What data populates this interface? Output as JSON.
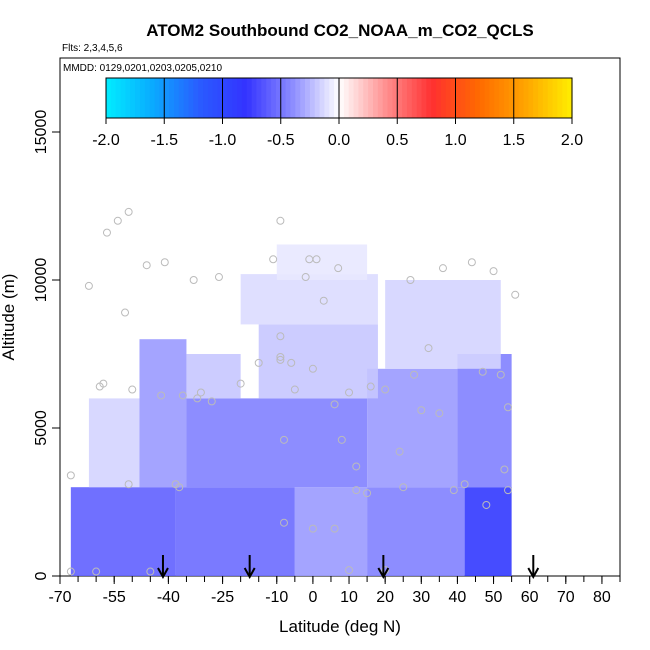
{
  "chart_data": {
    "type": "heatmap",
    "title": "ATOM2 Southbound CO2_NOAA_m_CO2_QCLS",
    "flights_note": "Flts: 2,3,4,5,6",
    "dates_note": "MMDD: 0129,0201,0203,0205,0210",
    "xlabel": "Latitude (deg N)",
    "ylabel": "Altitude (m)",
    "xlim": [
      -70,
      85
    ],
    "ylim": [
      0,
      17500
    ],
    "x_ticks": [
      -70,
      -55,
      -40,
      -25,
      -10,
      0,
      10,
      20,
      30,
      40,
      50,
      60,
      70,
      80
    ],
    "x_tick_labels": [
      "-70",
      "-55",
      "-40",
      "-25",
      "-10",
      "0",
      "10",
      "20",
      "30",
      "40",
      "50",
      "60",
      "70",
      "80"
    ],
    "x_minor_ticks": [
      -70,
      -65,
      -60,
      -55,
      -50,
      -45,
      -40,
      -35,
      -30,
      -25,
      -20,
      -15,
      -10,
      -5,
      0,
      5,
      10,
      15,
      20,
      25,
      30,
      35,
      40,
      45,
      50,
      55,
      60,
      65,
      70,
      75,
      80,
      85
    ],
    "y_ticks": [
      0,
      5000,
      10000,
      15000
    ],
    "y_tick_labels": [
      "0",
      "5000",
      "10000",
      "15000"
    ],
    "colorbar": {
      "min": -2.0,
      "max": 2.0,
      "tick_values": [
        -2.0,
        -1.5,
        -1.0,
        -0.5,
        0.0,
        0.5,
        1.0,
        1.5,
        2.0
      ],
      "tick_labels": [
        "-2.0",
        "-1.5",
        "-1.0",
        "-0.5",
        "0.0",
        "0.5",
        "1.0",
        "1.5",
        "2.0"
      ],
      "colors": [
        "#00eeff",
        "#0aaaff",
        "#2a5cff",
        "#3333ff",
        "#8c8cff",
        "#ffffff",
        "#ff9090",
        "#ff3030",
        "#ff6a00",
        "#ffa500",
        "#ffee00"
      ]
    },
    "arrow_latitudes": [
      -41.5,
      -17.5,
      19.5,
      61
    ],
    "field_regions": [
      {
        "x0": -67,
        "x1": -38,
        "y0": 0,
        "y1": 3000,
        "value": -0.6
      },
      {
        "x0": -38,
        "x1": -5,
        "y0": 0,
        "y1": 3000,
        "value": -0.55
      },
      {
        "x0": -5,
        "x1": 15,
        "y0": 0,
        "y1": 3000,
        "value": -0.35
      },
      {
        "x0": 15,
        "x1": 42,
        "y0": 0,
        "y1": 3000,
        "value": -0.45
      },
      {
        "x0": 42,
        "x1": 55,
        "y0": 0,
        "y1": 3000,
        "value": -0.85
      },
      {
        "x0": -62,
        "x1": -48,
        "y0": 3000,
        "y1": 6000,
        "value": -0.15
      },
      {
        "x0": -48,
        "x1": -35,
        "y0": 3000,
        "y1": 8000,
        "value": -0.35
      },
      {
        "x0": -35,
        "x1": 15,
        "y0": 3000,
        "y1": 6000,
        "value": -0.45
      },
      {
        "x0": 15,
        "x1": 40,
        "y0": 3000,
        "y1": 7000,
        "value": -0.35
      },
      {
        "x0": 40,
        "x1": 55,
        "y0": 3000,
        "y1": 7500,
        "value": -0.45
      },
      {
        "x0": -35,
        "x1": -20,
        "y0": 6000,
        "y1": 7500,
        "value": -0.2
      },
      {
        "x0": -15,
        "x1": 18,
        "y0": 6000,
        "y1": 8500,
        "value": -0.2
      },
      {
        "x0": 20,
        "x1": 52,
        "y0": 7000,
        "y1": 10000,
        "value": -0.15
      },
      {
        "x0": -20,
        "x1": 18,
        "y0": 8500,
        "y1": 10200,
        "value": -0.12
      },
      {
        "x0": -10,
        "x1": 15,
        "y0": 10000,
        "y1": 11200,
        "value": -0.08
      }
    ],
    "observations": [
      [
        -67,
        3400
      ],
      [
        -67,
        150
      ],
      [
        -62,
        9800
      ],
      [
        -59,
        6400
      ],
      [
        -58,
        6500
      ],
      [
        -57,
        11600
      ],
      [
        -54,
        12000
      ],
      [
        -52,
        8900
      ],
      [
        -51,
        12300
      ],
      [
        -51,
        3100
      ],
      [
        -50,
        6300
      ],
      [
        -46,
        10500
      ],
      [
        -42,
        6100
      ],
      [
        -41,
        10600
      ],
      [
        -38,
        3100
      ],
      [
        -37,
        3000
      ],
      [
        -36,
        6100
      ],
      [
        -33,
        10000
      ],
      [
        -32,
        6000
      ],
      [
        -31,
        6200
      ],
      [
        -28,
        5900
      ],
      [
        -26,
        10100
      ],
      [
        -20,
        6500
      ],
      [
        -15,
        7200
      ],
      [
        -11,
        10700
      ],
      [
        -9,
        12000
      ],
      [
        -9,
        8100
      ],
      [
        -9,
        7400
      ],
      [
        -9,
        7300
      ],
      [
        -8,
        4600
      ],
      [
        -8,
        1800
      ],
      [
        -6,
        7200
      ],
      [
        -5,
        6300
      ],
      [
        -2,
        10100
      ],
      [
        -1,
        10700
      ],
      [
        0,
        7000
      ],
      [
        1,
        10700
      ],
      [
        3,
        9300
      ],
      [
        6,
        5800
      ],
      [
        7,
        10400
      ],
      [
        8,
        4600
      ],
      [
        10,
        6200
      ],
      [
        12,
        3700
      ],
      [
        12,
        2900
      ],
      [
        15,
        2800
      ],
      [
        16,
        6400
      ],
      [
        20,
        6300
      ],
      [
        24,
        4200
      ],
      [
        25,
        3000
      ],
      [
        27,
        10000
      ],
      [
        28,
        6800
      ],
      [
        30,
        5600
      ],
      [
        32,
        7700
      ],
      [
        35,
        5500
      ],
      [
        36,
        10400
      ],
      [
        39,
        2900
      ],
      [
        42,
        3100
      ],
      [
        44,
        10600
      ],
      [
        47,
        6900
      ],
      [
        48,
        2400
      ],
      [
        50,
        10300
      ],
      [
        52,
        6800
      ],
      [
        53,
        3600
      ],
      [
        54,
        2900
      ],
      [
        54,
        5700
      ],
      [
        56,
        9500
      ],
      [
        10,
        200
      ],
      [
        20,
        200
      ],
      [
        -60,
        150
      ],
      [
        -45,
        150
      ],
      [
        0,
        1600
      ],
      [
        6,
        1600
      ]
    ]
  }
}
